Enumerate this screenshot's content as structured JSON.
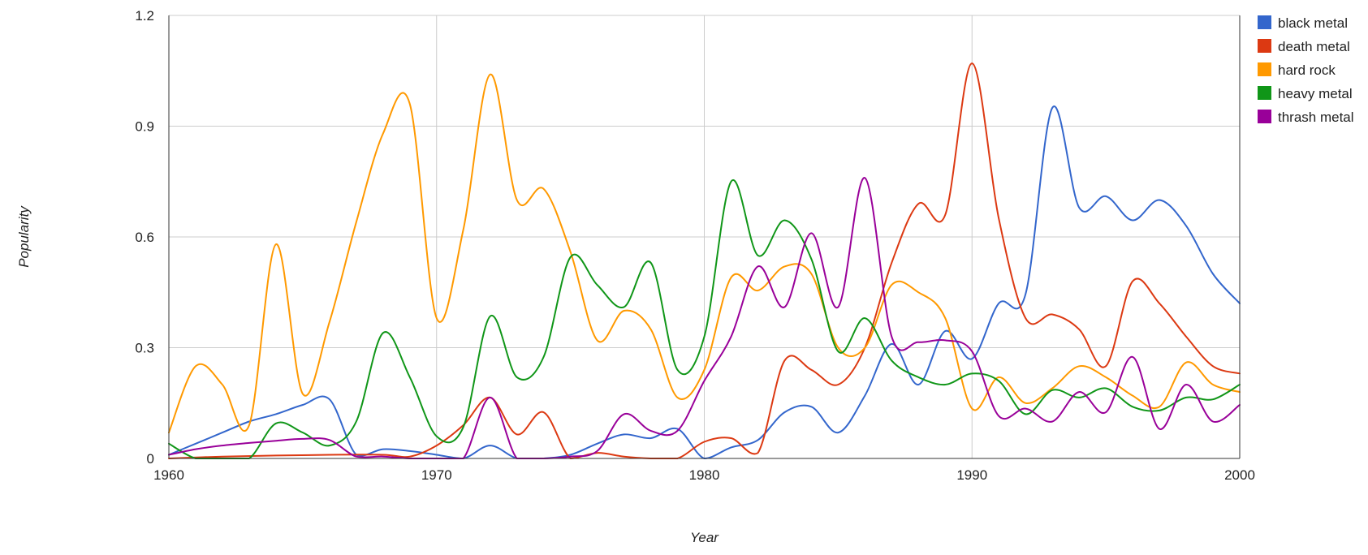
{
  "chart_data": {
    "type": "line",
    "title": "",
    "xlabel": "Year",
    "ylabel": "Popularity",
    "xlim": [
      1960,
      2000
    ],
    "ylim": [
      0,
      1.2
    ],
    "x_ticks": [
      "1960",
      "1970",
      "1980",
      "1990",
      "2000"
    ],
    "y_ticks": [
      "0",
      "0.3",
      "0.6",
      "0.9",
      "1.2"
    ],
    "grid": true,
    "legend_position": "top-right",
    "series": [
      {
        "name": "black metal",
        "color": "#3366cc",
        "points": [
          [
            1960,
            0.01
          ],
          [
            1961,
            0.04
          ],
          [
            1962,
            0.07
          ],
          [
            1963,
            0.1
          ],
          [
            1964,
            0.12
          ],
          [
            1965,
            0.145
          ],
          [
            1966,
            0.16
          ],
          [
            1967,
            0.01
          ],
          [
            1968,
            0.025
          ],
          [
            1969,
            0.02
          ],
          [
            1970,
            0.01
          ],
          [
            1971,
            0.0
          ],
          [
            1972,
            0.035
          ],
          [
            1973,
            0.0
          ],
          [
            1974,
            0.0
          ],
          [
            1975,
            0.01
          ],
          [
            1976,
            0.04
          ],
          [
            1977,
            0.065
          ],
          [
            1978,
            0.055
          ],
          [
            1979,
            0.08
          ],
          [
            1980,
            0.0
          ],
          [
            1981,
            0.03
          ],
          [
            1982,
            0.05
          ],
          [
            1983,
            0.125
          ],
          [
            1984,
            0.14
          ],
          [
            1985,
            0.07
          ],
          [
            1986,
            0.17
          ],
          [
            1987,
            0.31
          ],
          [
            1988,
            0.2
          ],
          [
            1989,
            0.345
          ],
          [
            1990,
            0.27
          ],
          [
            1991,
            0.42
          ],
          [
            1992,
            0.445
          ],
          [
            1993,
            0.95
          ],
          [
            1994,
            0.68
          ],
          [
            1995,
            0.71
          ],
          [
            1996,
            0.645
          ],
          [
            1997,
            0.7
          ],
          [
            1998,
            0.63
          ],
          [
            1999,
            0.5
          ],
          [
            2000,
            0.42
          ]
        ]
      },
      {
        "name": "death metal",
        "color": "#dc3912",
        "points": [
          [
            1960,
            0.0
          ],
          [
            1962,
            0.005
          ],
          [
            1964,
            0.008
          ],
          [
            1966,
            0.01
          ],
          [
            1968,
            0.01
          ],
          [
            1969,
            0.005
          ],
          [
            1970,
            0.035
          ],
          [
            1971,
            0.09
          ],
          [
            1972,
            0.165
          ],
          [
            1973,
            0.065
          ],
          [
            1974,
            0.125
          ],
          [
            1975,
            0.0
          ],
          [
            1976,
            0.015
          ],
          [
            1977,
            0.005
          ],
          [
            1978,
            0.0
          ],
          [
            1979,
            0.0
          ],
          [
            1980,
            0.045
          ],
          [
            1981,
            0.055
          ],
          [
            1982,
            0.015
          ],
          [
            1983,
            0.265
          ],
          [
            1984,
            0.24
          ],
          [
            1985,
            0.2
          ],
          [
            1986,
            0.3
          ],
          [
            1987,
            0.53
          ],
          [
            1988,
            0.69
          ],
          [
            1989,
            0.66
          ],
          [
            1990,
            1.07
          ],
          [
            1991,
            0.65
          ],
          [
            1992,
            0.38
          ],
          [
            1993,
            0.39
          ],
          [
            1994,
            0.35
          ],
          [
            1995,
            0.25
          ],
          [
            1996,
            0.48
          ],
          [
            1997,
            0.42
          ],
          [
            1998,
            0.33
          ],
          [
            1999,
            0.25
          ],
          [
            2000,
            0.23
          ]
        ]
      },
      {
        "name": "hard rock",
        "color": "#ff9900",
        "points": [
          [
            1960,
            0.07
          ],
          [
            1961,
            0.25
          ],
          [
            1962,
            0.2
          ],
          [
            1963,
            0.09
          ],
          [
            1964,
            0.58
          ],
          [
            1965,
            0.175
          ],
          [
            1966,
            0.37
          ],
          [
            1967,
            0.64
          ],
          [
            1968,
            0.88
          ],
          [
            1969,
            0.96
          ],
          [
            1970,
            0.38
          ],
          [
            1971,
            0.62
          ],
          [
            1972,
            1.04
          ],
          [
            1973,
            0.7
          ],
          [
            1974,
            0.73
          ],
          [
            1975,
            0.56
          ],
          [
            1976,
            0.32
          ],
          [
            1977,
            0.4
          ],
          [
            1978,
            0.35
          ],
          [
            1979,
            0.165
          ],
          [
            1980,
            0.24
          ],
          [
            1981,
            0.49
          ],
          [
            1982,
            0.455
          ],
          [
            1983,
            0.52
          ],
          [
            1984,
            0.5
          ],
          [
            1985,
            0.3
          ],
          [
            1986,
            0.3
          ],
          [
            1987,
            0.47
          ],
          [
            1988,
            0.45
          ],
          [
            1989,
            0.38
          ],
          [
            1990,
            0.135
          ],
          [
            1991,
            0.22
          ],
          [
            1992,
            0.15
          ],
          [
            1993,
            0.19
          ],
          [
            1994,
            0.25
          ],
          [
            1995,
            0.22
          ],
          [
            1996,
            0.17
          ],
          [
            1997,
            0.14
          ],
          [
            1998,
            0.26
          ],
          [
            1999,
            0.2
          ],
          [
            2000,
            0.18
          ]
        ]
      },
      {
        "name": "heavy metal",
        "color": "#109618",
        "points": [
          [
            1960,
            0.04
          ],
          [
            1961,
            0.0
          ],
          [
            1962,
            0.0
          ],
          [
            1963,
            0.0
          ],
          [
            1964,
            0.095
          ],
          [
            1965,
            0.07
          ],
          [
            1966,
            0.035
          ],
          [
            1967,
            0.1
          ],
          [
            1968,
            0.34
          ],
          [
            1969,
            0.22
          ],
          [
            1970,
            0.06
          ],
          [
            1971,
            0.085
          ],
          [
            1972,
            0.385
          ],
          [
            1973,
            0.22
          ],
          [
            1974,
            0.275
          ],
          [
            1975,
            0.545
          ],
          [
            1976,
            0.47
          ],
          [
            1977,
            0.41
          ],
          [
            1978,
            0.53
          ],
          [
            1979,
            0.24
          ],
          [
            1980,
            0.33
          ],
          [
            1981,
            0.75
          ],
          [
            1982,
            0.55
          ],
          [
            1983,
            0.645
          ],
          [
            1984,
            0.54
          ],
          [
            1985,
            0.29
          ],
          [
            1986,
            0.38
          ],
          [
            1987,
            0.265
          ],
          [
            1988,
            0.22
          ],
          [
            1989,
            0.2
          ],
          [
            1990,
            0.23
          ],
          [
            1991,
            0.21
          ],
          [
            1992,
            0.12
          ],
          [
            1993,
            0.185
          ],
          [
            1994,
            0.165
          ],
          [
            1995,
            0.19
          ],
          [
            1996,
            0.14
          ],
          [
            1997,
            0.13
          ],
          [
            1998,
            0.165
          ],
          [
            1999,
            0.16
          ],
          [
            2000,
            0.2
          ]
        ]
      },
      {
        "name": "thrash metal",
        "color": "#990099",
        "points": [
          [
            1960,
            0.01
          ],
          [
            1961,
            0.025
          ],
          [
            1962,
            0.035
          ],
          [
            1963,
            0.042
          ],
          [
            1964,
            0.048
          ],
          [
            1965,
            0.053
          ],
          [
            1966,
            0.05
          ],
          [
            1967,
            0.005
          ],
          [
            1968,
            0.005
          ],
          [
            1969,
            0.0
          ],
          [
            1970,
            0.0
          ],
          [
            1971,
            0.0
          ],
          [
            1972,
            0.165
          ],
          [
            1973,
            0.0
          ],
          [
            1974,
            0.0
          ],
          [
            1975,
            0.005
          ],
          [
            1976,
            0.02
          ],
          [
            1977,
            0.12
          ],
          [
            1978,
            0.075
          ],
          [
            1979,
            0.075
          ],
          [
            1980,
            0.21
          ],
          [
            1981,
            0.33
          ],
          [
            1982,
            0.52
          ],
          [
            1983,
            0.41
          ],
          [
            1984,
            0.61
          ],
          [
            1985,
            0.41
          ],
          [
            1986,
            0.76
          ],
          [
            1987,
            0.33
          ],
          [
            1988,
            0.315
          ],
          [
            1989,
            0.32
          ],
          [
            1990,
            0.29
          ],
          [
            1991,
            0.115
          ],
          [
            1992,
            0.135
          ],
          [
            1993,
            0.1
          ],
          [
            1994,
            0.18
          ],
          [
            1995,
            0.125
          ],
          [
            1996,
            0.275
          ],
          [
            1997,
            0.08
          ],
          [
            1998,
            0.2
          ],
          [
            1999,
            0.1
          ],
          [
            2000,
            0.145
          ]
        ]
      }
    ]
  }
}
